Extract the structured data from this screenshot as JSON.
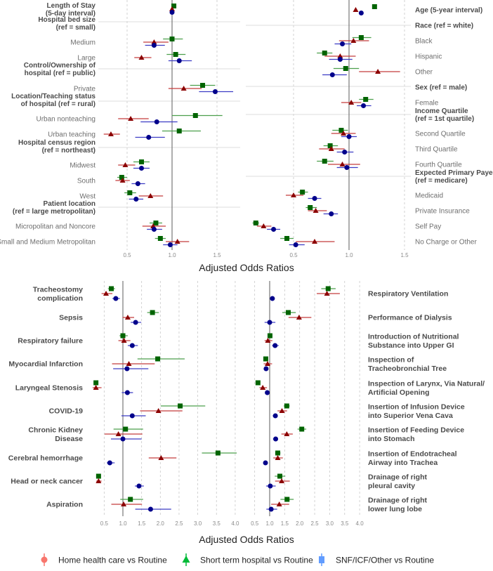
{
  "legend": [
    {
      "label": "Home health care vs Routine",
      "color": "#F8766D"
    },
    {
      "label": "Short term hospital vs Routine",
      "color": "#00BA38"
    },
    {
      "label": "SNF/ICF/Other vs Routine",
      "color": "#619CFF"
    }
  ],
  "colors": {
    "home": "#8B0000",
    "short": "#006400",
    "snf": "#00008B"
  },
  "chart_data": [
    {
      "type": "forest",
      "xlabel": "Adjusted Odds Ratios",
      "xticks": [
        0.5,
        1.0,
        1.5
      ],
      "tick_labels": [
        "0.5",
        "1.0",
        "1.5"
      ],
      "reference_line": 1.0,
      "rows": [
        {
          "label": [
            "Length of Stay",
            "(5-day interval)"
          ],
          "style": "bold",
          "short": [
            1.02,
            1.01,
            1.03
          ],
          "home": [
            1.0,
            0.99,
            1.01
          ],
          "snf": [
            1.0,
            0.99,
            1.01
          ]
        },
        {
          "label": [
            "Hospital bed size",
            "(ref = small)"
          ],
          "style": "header"
        },
        {
          "label": [
            "Medium"
          ],
          "style": "cat",
          "short": [
            1.0,
            0.9,
            1.12
          ],
          "home": [
            0.8,
            0.68,
            0.96
          ],
          "snf": [
            0.8,
            0.7,
            0.92
          ]
        },
        {
          "label": [
            "Large"
          ],
          "style": "cat",
          "short": [
            1.04,
            0.94,
            1.15
          ],
          "home": [
            0.66,
            0.58,
            0.77
          ],
          "snf": [
            1.08,
            0.96,
            1.22
          ]
        },
        {
          "label": [
            "Control/Ownership of",
            "hospital (ref = public)"
          ],
          "style": "header"
        },
        {
          "label": [
            "Private"
          ],
          "style": "cat",
          "short": [
            1.34,
            1.2,
            1.48
          ],
          "home": [
            1.13,
            0.96,
            1.33
          ],
          "snf": [
            1.48,
            1.3,
            1.68
          ]
        },
        {
          "label": [
            "Location/Teaching status",
            "of hospital (ref = rural)"
          ],
          "style": "header"
        },
        {
          "label": [
            "Urban nonteaching"
          ],
          "style": "cat",
          "short": [
            1.26,
            1.0,
            1.56
          ],
          "home": [
            0.54,
            0.4,
            0.74
          ],
          "snf": [
            0.83,
            0.65,
            1.06
          ]
        },
        {
          "label": [
            "Urban teaching"
          ],
          "style": "cat",
          "short": [
            1.08,
            0.89,
            1.32
          ],
          "home": [
            0.32,
            0.24,
            0.42
          ],
          "snf": [
            0.74,
            0.59,
            0.92
          ]
        },
        {
          "label": [
            "Hospital census region",
            "(ref = northeast)"
          ],
          "style": "header"
        },
        {
          "label": [
            "Midwest"
          ],
          "style": "cat",
          "short": [
            0.66,
            0.57,
            0.75
          ],
          "home": [
            0.48,
            0.4,
            0.59
          ],
          "snf": [
            0.66,
            0.57,
            0.75
          ]
        },
        {
          "label": [
            "South"
          ],
          "style": "cat",
          "short": [
            0.44,
            0.39,
            0.5
          ],
          "home": [
            0.45,
            0.37,
            0.53
          ],
          "snf": [
            0.62,
            0.55,
            0.7
          ]
        },
        {
          "label": [
            "West"
          ],
          "style": "cat",
          "short": [
            0.53,
            0.47,
            0.6
          ],
          "home": [
            0.76,
            0.63,
            0.9
          ],
          "snf": [
            0.6,
            0.52,
            0.68
          ]
        },
        {
          "label": [
            "Patient location",
            "(ref = large metropolitan)"
          ],
          "style": "header"
        },
        {
          "label": [
            "Micropolitan and Noncore"
          ],
          "style": "cat",
          "short": [
            0.82,
            0.75,
            0.89
          ],
          "home": [
            0.79,
            0.67,
            0.93
          ],
          "snf": [
            0.8,
            0.72,
            0.89
          ]
        },
        {
          "label": [
            "Small and Medium Metropolitan"
          ],
          "style": "cat",
          "short": [
            0.87,
            0.81,
            0.93
          ],
          "home": [
            1.06,
            0.93,
            1.19
          ],
          "snf": [
            0.98,
            0.9,
            1.06
          ]
        }
      ]
    },
    {
      "type": "forest",
      "xlabel": "",
      "xticks": [
        0.5,
        1.0,
        1.5
      ],
      "tick_labels": [
        "0.5",
        "1.0",
        "1.5"
      ],
      "reference_line": 1.0,
      "rows": [
        {
          "label": [
            "Age (5-year interval)"
          ],
          "style": "bold",
          "short": [
            1.23,
            1.22,
            1.24
          ],
          "home": [
            1.06,
            1.05,
            1.07
          ],
          "snf": [
            1.11,
            1.1,
            1.12
          ]
        },
        {
          "label": [
            "Race (ref = white)"
          ],
          "style": "header"
        },
        {
          "label": [
            "Black"
          ],
          "style": "cat",
          "short": [
            1.11,
            1.03,
            1.2
          ],
          "home": [
            1.04,
            0.91,
            1.18
          ],
          "snf": [
            0.94,
            0.87,
            1.02
          ]
        },
        {
          "label": [
            "Hispanic"
          ],
          "style": "cat",
          "short": [
            0.78,
            0.71,
            0.85
          ],
          "home": [
            0.92,
            0.78,
            1.06
          ],
          "snf": [
            0.92,
            0.82,
            1.03
          ]
        },
        {
          "label": [
            "Other"
          ],
          "style": "cat",
          "short": [
            0.97,
            0.86,
            1.09
          ],
          "home": [
            1.26,
            1.09,
            1.46
          ],
          "snf": [
            0.85,
            0.76,
            0.98
          ]
        },
        {
          "label": [
            "Sex (ref = male)"
          ],
          "style": "header"
        },
        {
          "label": [
            "Female"
          ],
          "style": "cat",
          "short": [
            1.15,
            1.09,
            1.22
          ],
          "home": [
            1.02,
            0.93,
            1.11
          ],
          "snf": [
            1.13,
            1.07,
            1.2
          ]
        },
        {
          "label": [
            "Income Quartile",
            "(ref = 1st quartile)"
          ],
          "style": "header"
        },
        {
          "label": [
            "Second Quartile"
          ],
          "style": "cat",
          "short": [
            0.93,
            0.85,
            0.99
          ],
          "home": [
            0.95,
            0.84,
            1.06
          ],
          "snf": [
            1.0,
            0.93,
            1.07
          ]
        },
        {
          "label": [
            "Third Quartile"
          ],
          "style": "cat",
          "short": [
            0.83,
            0.77,
            0.9
          ],
          "home": [
            0.84,
            0.73,
            0.96
          ],
          "snf": [
            0.96,
            0.89,
            1.04
          ]
        },
        {
          "label": [
            "Fourth Quartile"
          ],
          "style": "cat",
          "short": [
            0.78,
            0.71,
            0.86
          ],
          "home": [
            0.94,
            0.81,
            1.1
          ],
          "snf": [
            0.98,
            0.89,
            1.08
          ]
        },
        {
          "label": [
            "Expected Primary Payer",
            "(ref = medicare)"
          ],
          "style": "header"
        },
        {
          "label": [
            "Medicaid"
          ],
          "style": "cat",
          "short": [
            0.58,
            0.54,
            0.63
          ],
          "home": [
            0.5,
            0.43,
            0.59
          ],
          "snf": [
            0.69,
            0.63,
            0.75
          ]
        },
        {
          "label": [
            "Private Insurance"
          ],
          "style": "cat",
          "short": [
            0.65,
            0.61,
            0.71
          ],
          "home": [
            0.7,
            0.63,
            0.8
          ],
          "snf": [
            0.84,
            0.77,
            0.9
          ]
        },
        {
          "label": [
            "Self Pay"
          ],
          "style": "cat",
          "short": [
            0.16,
            0.13,
            0.19
          ],
          "home": [
            0.23,
            0.17,
            0.3
          ],
          "snf": [
            0.32,
            0.26,
            0.38
          ]
        },
        {
          "label": [
            "No Charge or Other"
          ],
          "style": "cat",
          "short": [
            0.44,
            0.38,
            0.5
          ],
          "home": [
            0.69,
            0.52,
            0.87
          ],
          "snf": [
            0.52,
            0.46,
            0.6
          ]
        }
      ]
    },
    {
      "type": "forest",
      "xlabel": "Adjusted Odds Ratios",
      "xticks": [
        0.5,
        1.0,
        1.5,
        2.0,
        2.5,
        3.0,
        3.5,
        4.0
      ],
      "tick_labels": [
        "0.5",
        "1.0",
        "1.5",
        "2.0",
        "2.5",
        "3.0",
        "3.5",
        "4.0"
      ],
      "reference_line": 1.0,
      "rows": [
        {
          "label": [
            "Tracheostomy",
            "complication"
          ],
          "style": "big",
          "short": [
            0.69,
            0.6,
            0.79
          ],
          "home": [
            0.55,
            0.43,
            0.72
          ],
          "snf": [
            0.81,
            0.72,
            0.92
          ]
        },
        {
          "label": [
            "Sepsis"
          ],
          "style": "big",
          "short": [
            1.79,
            1.65,
            1.96
          ],
          "home": [
            1.13,
            0.99,
            1.3
          ],
          "snf": [
            1.34,
            1.21,
            1.49
          ]
        },
        {
          "label": [
            "Respiratory failure"
          ],
          "style": "big",
          "short": [
            1.0,
            0.91,
            1.13
          ],
          "home": [
            1.03,
            0.88,
            1.2
          ],
          "snf": [
            1.25,
            1.13,
            1.4
          ]
        },
        {
          "label": [
            "Myocardial Infarction"
          ],
          "style": "big",
          "short": [
            1.93,
            1.39,
            2.65
          ],
          "home": [
            1.16,
            0.71,
            1.85
          ],
          "snf": [
            1.11,
            0.74,
            1.68
          ]
        },
        {
          "label": [
            "Laryngeal Stenosis"
          ],
          "style": "big",
          "short": [
            0.28,
            0.24,
            0.32
          ],
          "home": [
            0.28,
            0.19,
            0.43
          ],
          "snf": [
            1.12,
            0.97,
            1.27
          ]
        },
        {
          "label": [
            "COVID-19"
          ],
          "style": "big",
          "short": [
            2.53,
            2.01,
            3.2
          ],
          "home": [
            1.95,
            1.46,
            2.59
          ],
          "snf": [
            1.25,
            0.96,
            1.61
          ]
        },
        {
          "label": [
            "Chronic Kidney",
            "Disease"
          ],
          "style": "big",
          "short": [
            1.07,
            0.75,
            1.54
          ],
          "home": [
            0.88,
            0.51,
            1.52
          ],
          "snf": [
            1.0,
            0.68,
            1.5
          ]
        },
        {
          "label": [
            "Cerebral hemorrhage"
          ],
          "style": "big",
          "short": [
            3.54,
            3.11,
            4.04
          ],
          "home": [
            2.02,
            1.69,
            2.43
          ],
          "snf": [
            0.65,
            0.57,
            0.78
          ]
        },
        {
          "label": [
            "Head or neck cancer"
          ],
          "style": "big",
          "short": [
            0.35,
            0.32,
            0.38
          ],
          "home": [
            0.35,
            0.29,
            0.43
          ],
          "snf": [
            1.43,
            1.32,
            1.56
          ]
        },
        {
          "label": [
            "Aspiration"
          ],
          "style": "big",
          "short": [
            1.2,
            0.93,
            1.54
          ],
          "home": [
            1.02,
            0.69,
            1.51
          ],
          "snf": [
            1.74,
            1.33,
            2.29
          ]
        }
      ]
    },
    {
      "type": "forest",
      "xlabel": "",
      "xticks": [
        0.5,
        1.0,
        1.5,
        2.0,
        2.5,
        3.0,
        3.5,
        4.0
      ],
      "tick_labels": [
        "0.5",
        "1.0",
        "1.5",
        "2.0",
        "2.5",
        "3.0",
        "3.5",
        "4.0"
      ],
      "reference_line": 1.0,
      "rows": [
        {
          "label": [
            "Respiratory Ventilation"
          ],
          "style": "big",
          "short": [
            2.95,
            2.72,
            3.2
          ],
          "home": [
            2.91,
            2.57,
            3.34
          ],
          "snf": [
            1.09,
            1.01,
            1.17
          ]
        },
        {
          "label": [
            "Performance of Dialysis"
          ],
          "style": "big",
          "short": [
            1.62,
            1.42,
            1.87
          ],
          "home": [
            1.98,
            1.63,
            2.39
          ],
          "snf": [
            1.0,
            0.83,
            1.19
          ]
        },
        {
          "label": [
            "Introduction of Nutritional",
            "Substance into Upper GI"
          ],
          "style": "big",
          "short": [
            1.01,
            0.93,
            1.09
          ],
          "home": [
            0.94,
            0.83,
            1.09
          ],
          "snf": [
            1.18,
            1.08,
            1.3
          ]
        },
        {
          "label": [
            "Inspection of",
            "Tracheobronchial Tree"
          ],
          "style": "big",
          "short": [
            0.87,
            0.8,
            0.95
          ],
          "home": [
            0.93,
            0.8,
            1.08
          ],
          "snf": [
            0.88,
            0.81,
            0.96
          ]
        },
        {
          "label": [
            "Inspection of Larynx, Via Natural/",
            "Artificial Opening"
          ],
          "style": "big",
          "short": [
            0.61,
            0.56,
            0.66
          ],
          "home": [
            0.77,
            0.66,
            0.91
          ],
          "snf": [
            0.92,
            0.86,
            0.99
          ]
        },
        {
          "label": [
            "Insertion of Infusion Device",
            "into Superior Vena Cava"
          ],
          "style": "big",
          "short": [
            1.57,
            1.47,
            1.67
          ],
          "home": [
            1.41,
            1.26,
            1.58
          ],
          "snf": [
            1.19,
            1.1,
            1.27
          ]
        },
        {
          "label": [
            "Insertion of Feeding Device",
            "into Stomach"
          ],
          "style": "big",
          "short": [
            2.07,
            1.93,
            2.22
          ],
          "home": [
            1.57,
            1.39,
            1.77
          ],
          "snf": [
            1.2,
            1.11,
            1.28
          ]
        },
        {
          "label": [
            "Insertion of Endotracheal",
            "Airway into Trachea"
          ],
          "style": "big",
          "short": [
            1.27,
            1.18,
            1.36
          ],
          "home": [
            1.27,
            1.12,
            1.44
          ],
          "snf": [
            0.86,
            0.79,
            0.93
          ]
        },
        {
          "label": [
            "Drainage of right",
            "pleural cavity"
          ],
          "style": "big",
          "short": [
            1.34,
            1.17,
            1.52
          ],
          "home": [
            1.4,
            1.18,
            1.67
          ],
          "snf": [
            1.02,
            0.88,
            1.2
          ]
        },
        {
          "label": [
            "Drainage of right",
            "lower lung lobe"
          ],
          "style": "big",
          "short": [
            1.58,
            1.36,
            1.8
          ],
          "home": [
            1.32,
            1.05,
            1.65
          ],
          "snf": [
            1.05,
            0.89,
            1.25
          ]
        }
      ]
    }
  ]
}
